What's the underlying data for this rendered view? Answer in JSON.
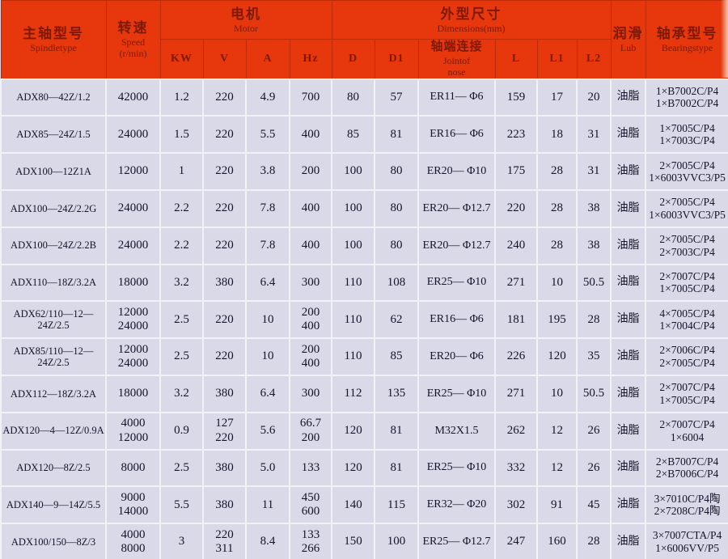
{
  "colors": {
    "header_bg": "#e7370d",
    "header_text": "#7d1a03",
    "body_bg": "#d9d9e7",
    "body_text": "#14142a",
    "grid_line": "#f1f1f8"
  },
  "table": {
    "header": {
      "spindle": {
        "zh": "主轴型号",
        "en": "Spindletype"
      },
      "speed": {
        "zh": "转速",
        "en": "Speed",
        "unit": "(r/min)"
      },
      "motor": {
        "zh": "电机",
        "en": "Motor"
      },
      "kw": "KW",
      "v": "V",
      "a": "A",
      "hz": "Hz",
      "dims": {
        "zh": "外型尺寸",
        "en": "Dimensions(mm)"
      },
      "d": "D",
      "d1": "D1",
      "joint": {
        "zh": "轴端连接",
        "en": "Jointof",
        "en2": "nose"
      },
      "l": "L",
      "l1": "L1",
      "l2": "L2",
      "lub": {
        "zh": "润滑",
        "en": "Lub"
      },
      "bearing": {
        "zh": "轴承型号",
        "en": "Bearingstype"
      }
    },
    "col_keys": [
      "model",
      "speed",
      "kw",
      "v",
      "a",
      "hz",
      "d",
      "d1",
      "joint",
      "l",
      "l1",
      "l2",
      "lub",
      "bearing"
    ],
    "rows": [
      [
        "ADX80—42Z/1.2",
        "42000",
        "1.2",
        "220",
        "4.9",
        "700",
        "80",
        "57",
        "ER11— Φ6",
        "159",
        "17",
        "20",
        "油脂",
        "1×B7002C/P4\n1×B7002C/P4"
      ],
      [
        "ADX85—24Z/1.5",
        "24000",
        "1.5",
        "220",
        "5.5",
        "400",
        "85",
        "81",
        "ER16— Φ6",
        "223",
        "18",
        "31",
        "油脂",
        "1×7005C/P4\n1×7003C/P4"
      ],
      [
        "ADX100—12Z1A",
        "12000",
        "1",
        "220",
        "3.8",
        "200",
        "100",
        "80",
        "ER20— Φ10",
        "175",
        "28",
        "31",
        "油脂",
        "2×7005C/P4\n1×6003VVC3/P5"
      ],
      [
        "ADX100—24Z/2.2G",
        "24000",
        "2.2",
        "220",
        "7.8",
        "400",
        "100",
        "80",
        "ER20— Φ12.7",
        "220",
        "28",
        "38",
        "油脂",
        "2×7005C/P4\n1×6003VVC3/P5"
      ],
      [
        "ADX100—24Z/2.2B",
        "24000",
        "2.2",
        "220",
        "7.8",
        "400",
        "100",
        "80",
        "ER20— Φ12.7",
        "240",
        "28",
        "38",
        "油脂",
        "2×7005C/P4\n2×7003C/P4"
      ],
      [
        "ADX110—18Z/3.2A",
        "18000",
        "3.2",
        "380",
        "6.4",
        "300",
        "110",
        "108",
        "ER25— Φ10",
        "271",
        "10",
        "50.5",
        "油脂",
        "2×7007C/P4\n1×7005C/P4"
      ],
      [
        "ADX62/110—12—24Z/2.5",
        "12000\n24000",
        "2.5",
        "220",
        "10",
        "200\n400",
        "110",
        "62",
        "ER16— Φ6",
        "181",
        "195",
        "28",
        "油脂",
        "4×7005C/P4\n1×7004C/P4"
      ],
      [
        "ADX85/110—12—24Z/2.5",
        "12000\n24000",
        "2.5",
        "220",
        "10",
        "200\n400",
        "110",
        "85",
        "ER20— Φ6",
        "226",
        "120",
        "35",
        "油脂",
        "2×7006C/P4\n2×7005C/P4"
      ],
      [
        "ADX112—18Z/3.2A",
        "18000",
        "3.2",
        "380",
        "6.4",
        "300",
        "112",
        "135",
        "ER25— Φ10",
        "271",
        "10",
        "50.5",
        "油脂",
        "2×7007C/P4\n1×7005C/P4"
      ],
      [
        "ADX120—4—12Z/0.9A",
        "4000\n12000",
        "0.9",
        "127\n220",
        "5.6",
        "66.7\n200",
        "120",
        "81",
        "M32X1.5",
        "262",
        "12",
        "26",
        "油脂",
        "2×7007C/P4\n1×6004"
      ],
      [
        "ADX120—8Z/2.5",
        "8000",
        "2.5",
        "380",
        "5.0",
        "133",
        "120",
        "81",
        "ER25— Φ10",
        "332",
        "12",
        "26",
        "油脂",
        "2×B7007C/P4\n2×B7006C/P4"
      ],
      [
        "ADX140—9—14Z/5.5",
        "9000\n14000",
        "5.5",
        "380",
        "11",
        "450\n600",
        "140",
        "115",
        "ER32— Φ20",
        "302",
        "91",
        "45",
        "油脂",
        "3×7010C/P4陶\n2×7208C/P4陶"
      ],
      [
        "ADX100/150—8Z/3",
        "4000\n8000",
        "3",
        "220\n311",
        "8.4",
        "133\n266",
        "150",
        "100",
        "ER25— Φ12.7",
        "247",
        "160",
        "28",
        "油脂",
        "3×7007CTA/P4\n1×6006VV/P5"
      ]
    ]
  }
}
